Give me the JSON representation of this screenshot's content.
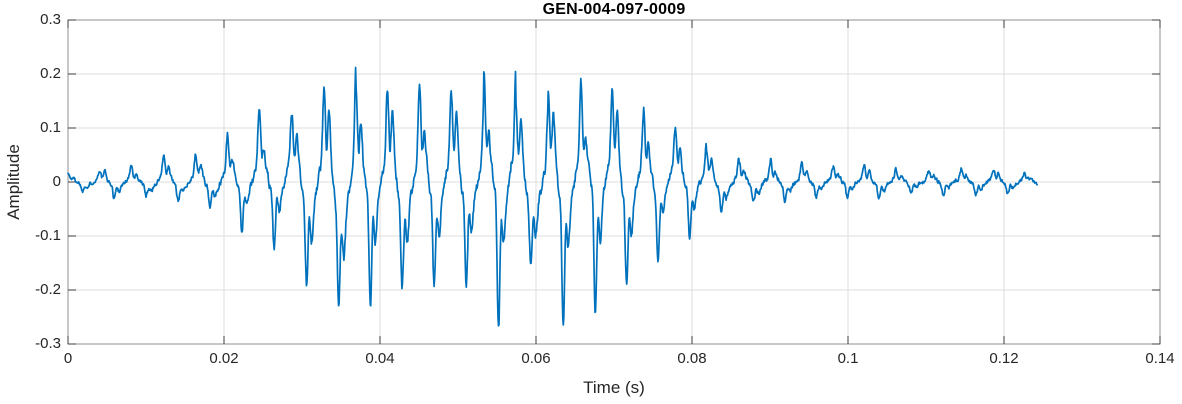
{
  "page": {
    "background": "#ffffff"
  },
  "chart_data": {
    "type": "line",
    "title": "GEN-004-097-0009",
    "xlabel": "Time (s)",
    "ylabel": "Amplitude",
    "xlim": [
      0,
      0.14
    ],
    "ylim": [
      -0.3,
      0.3
    ],
    "grid": true,
    "legend": "none",
    "x_ticks": [
      {
        "v": 0,
        "label": "0"
      },
      {
        "v": 0.02,
        "label": "0.02"
      },
      {
        "v": 0.04,
        "label": "0.04"
      },
      {
        "v": 0.06,
        "label": "0.06"
      },
      {
        "v": 0.08,
        "label": "0.08"
      },
      {
        "v": 0.1,
        "label": "0.1"
      },
      {
        "v": 0.12,
        "label": "0.12"
      },
      {
        "v": 0.14,
        "label": "0.14"
      }
    ],
    "y_ticks": [
      {
        "v": 0.3,
        "label": "0.3"
      },
      {
        "v": 0.2,
        "label": "0.2"
      },
      {
        "v": 0.1,
        "label": "0.1"
      },
      {
        "v": 0,
        "label": "0"
      },
      {
        "v": -0.1,
        "label": "-0.1"
      },
      {
        "v": -0.2,
        "label": "-0.2"
      },
      {
        "v": -0.3,
        "label": "-0.3"
      }
    ],
    "style": {
      "line_color": "#0072BD",
      "line_width": 1.7,
      "axis_color": "#8f8f8f",
      "tick_mark_color": "#3c3c3c",
      "grid_color": "#dedede",
      "text_color": "#262626",
      "title_color": "#000000"
    },
    "series": [
      {
        "name": "GEN-004-097-0009",
        "kind": "speech_like_burst_waveform",
        "t_start": 0,
        "t_end": 0.1243,
        "sample_rate_hz": 16000,
        "fundamental_hz": 246,
        "peak_positive": 0.215,
        "peak_negative": -0.26,
        "seed": 1337,
        "noise_floor": 0.0045,
        "noise_env_scale": 0.05,
        "envelope_pos": [
          [
            0,
            0.015
          ],
          [
            0.004,
            0.02
          ],
          [
            0.006,
            0.045
          ],
          [
            0.009,
            0.025
          ],
          [
            0.012,
            0.05
          ],
          [
            0.015,
            0.03
          ],
          [
            0.019,
            0.095
          ],
          [
            0.022,
            0.085
          ],
          [
            0.025,
            0.13
          ],
          [
            0.028,
            0.12
          ],
          [
            0.031,
            0.15
          ],
          [
            0.034,
            0.17
          ],
          [
            0.037,
            0.2
          ],
          [
            0.04,
            0.17
          ],
          [
            0.042,
            0.215
          ],
          [
            0.045,
            0.19
          ],
          [
            0.048,
            0.18
          ],
          [
            0.051,
            0.19
          ],
          [
            0.054,
            0.17
          ],
          [
            0.057,
            0.18
          ],
          [
            0.06,
            0.17
          ],
          [
            0.063,
            0.18
          ],
          [
            0.066,
            0.19
          ],
          [
            0.069,
            0.18
          ],
          [
            0.072,
            0.16
          ],
          [
            0.075,
            0.12
          ],
          [
            0.078,
            0.095
          ],
          [
            0.081,
            0.07
          ],
          [
            0.085,
            0.05
          ],
          [
            0.09,
            0.045
          ],
          [
            0.095,
            0.035
          ],
          [
            0.1,
            0.03
          ],
          [
            0.105,
            0.025
          ],
          [
            0.112,
            0.022
          ],
          [
            0.12,
            0.02
          ],
          [
            0.1243,
            0.012
          ]
        ],
        "envelope_neg": [
          [
            0,
            0.015
          ],
          [
            0.004,
            0.02
          ],
          [
            0.006,
            0.035
          ],
          [
            0.009,
            0.025
          ],
          [
            0.012,
            0.04
          ],
          [
            0.015,
            0.035
          ],
          [
            0.019,
            0.06
          ],
          [
            0.022,
            0.09
          ],
          [
            0.025,
            0.08
          ],
          [
            0.028,
            0.13
          ],
          [
            0.031,
            0.21
          ],
          [
            0.034,
            0.23
          ],
          [
            0.037,
            0.24
          ],
          [
            0.04,
            0.26
          ],
          [
            0.042,
            0.25
          ],
          [
            0.045,
            0.22
          ],
          [
            0.048,
            0.21
          ],
          [
            0.051,
            0.2
          ],
          [
            0.054,
            0.21
          ],
          [
            0.057,
            0.22
          ],
          [
            0.06,
            0.2
          ],
          [
            0.063,
            0.24
          ],
          [
            0.066,
            0.23
          ],
          [
            0.069,
            0.23
          ],
          [
            0.072,
            0.2
          ],
          [
            0.075,
            0.13
          ],
          [
            0.078,
            0.1
          ],
          [
            0.081,
            0.08
          ],
          [
            0.085,
            0.055
          ],
          [
            0.09,
            0.045
          ],
          [
            0.095,
            0.035
          ],
          [
            0.1,
            0.03
          ],
          [
            0.105,
            0.025
          ],
          [
            0.112,
            0.022
          ],
          [
            0.12,
            0.02
          ],
          [
            0.1243,
            0.012
          ]
        ]
      }
    ]
  }
}
